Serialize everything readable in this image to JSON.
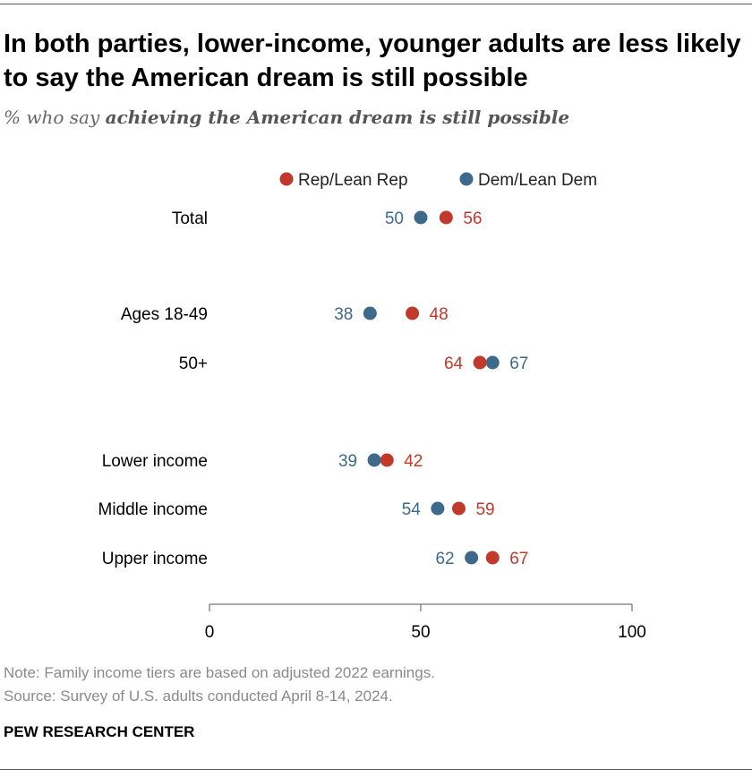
{
  "title": "In both parties, lower-income, younger adults are less likely to say the American dream is still possible",
  "subtitle_prefix": "% who say ",
  "subtitle_emphasis": "achieving the American dream is still possible",
  "note": "Note: Family income tiers are based on adjusted 2022 earnings.",
  "source": "Source: Survey of U.S. adults conducted April 8-14, 2024.",
  "brand": "PEW RESEARCH CENTER",
  "colors": {
    "rep": "#c0392b",
    "dem": "#3d6a8a"
  },
  "chart_data": {
    "type": "scatter",
    "categories": [
      "Total",
      "Ages 18-49",
      "50+",
      "Lower income",
      "Middle income",
      "Upper income"
    ],
    "series": [
      {
        "name": "Rep/Lean Rep",
        "values": [
          56,
          48,
          64,
          42,
          59,
          67
        ]
      },
      {
        "name": "Dem/Lean Dem",
        "values": [
          50,
          38,
          67,
          39,
          54,
          62
        ]
      }
    ],
    "xlim": [
      0,
      100
    ],
    "xticks": [
      "0",
      "50",
      "100"
    ],
    "legend_position": "top"
  }
}
